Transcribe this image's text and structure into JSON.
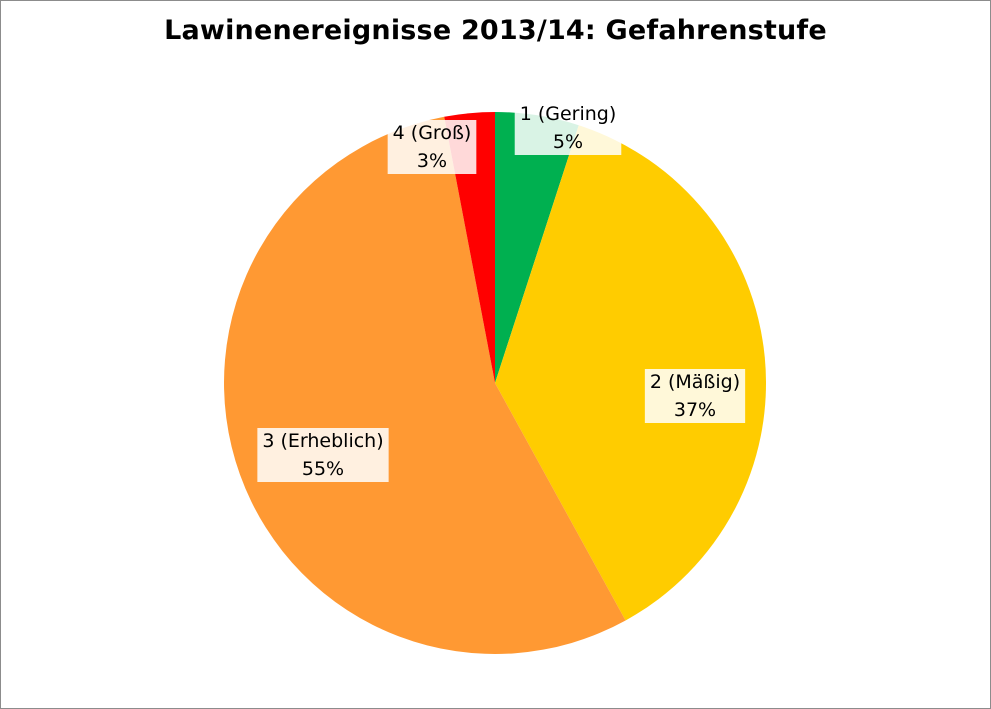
{
  "chart_data": {
    "type": "pie",
    "title": "Lawinenereignisse 2013/14: Gefahrenstufe",
    "categories": [
      "1 (Gering)",
      "2 (Mäßig)",
      "3 (Erheblich)",
      "4 (Groß)"
    ],
    "values": [
      5,
      37,
      55,
      3
    ],
    "value_labels": [
      "5%",
      "37%",
      "55%",
      "3%"
    ],
    "colors": [
      "#00b050",
      "#ffcc00",
      "#ff9933",
      "#ff0000"
    ],
    "start_angle_deg": 0,
    "direction": "clockwise",
    "legend": "none",
    "data_labels": "category and percentage",
    "label_background": "semi-transparent white"
  }
}
